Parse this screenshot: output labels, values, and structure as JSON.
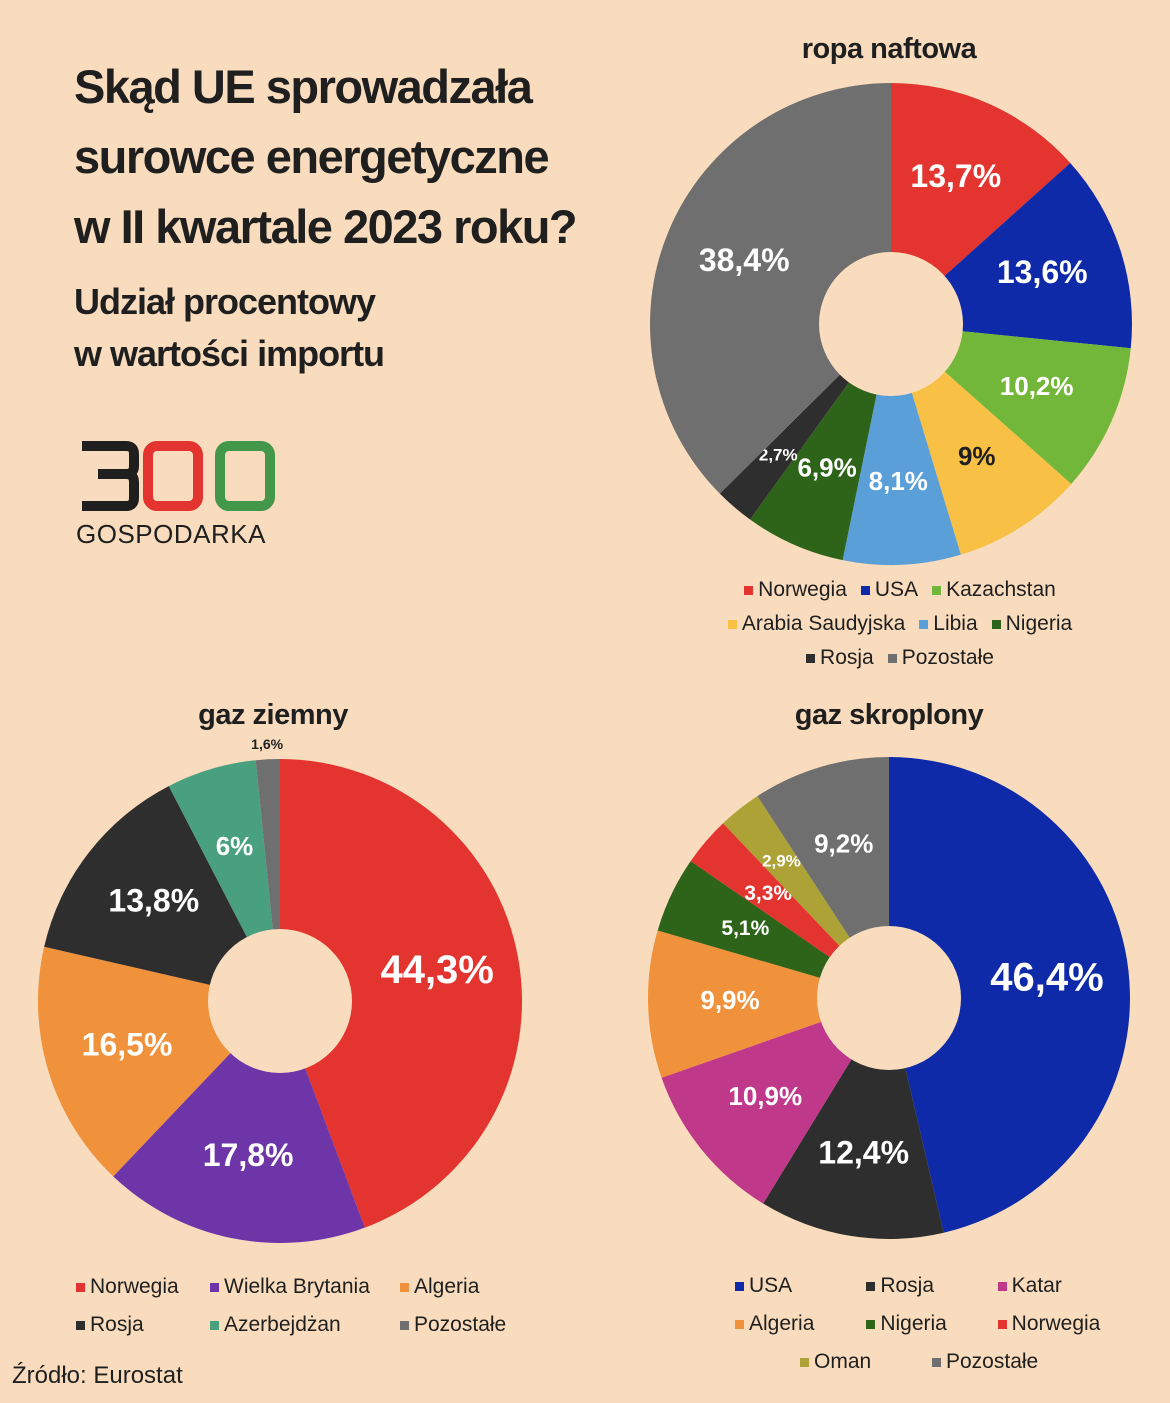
{
  "title_lines": [
    "Skąd UE sprowadzała",
    "surowce energetyczne",
    "w II kwartale 2023 roku?"
  ],
  "subtitle_lines": [
    "Udział procentowy",
    "w wartości importu"
  ],
  "logo": {
    "number": "300",
    "word": "GOSPODARKA"
  },
  "source": "Źródło: Eurostat",
  "chart_data": [
    {
      "type": "pie",
      "title": "ropa naftowa",
      "donut": true,
      "slices": [
        {
          "name": "Norwegia",
          "value": 13.7,
          "label": "13,7%",
          "color": "#e3342f"
        },
        {
          "name": "USA",
          "value": 13.6,
          "label": "13,6%",
          "color": "#0e2aa8"
        },
        {
          "name": "Kazachstan",
          "value": 10.2,
          "label": "10,2%",
          "color": "#72b73a"
        },
        {
          "name": "Arabia Saudyjska",
          "value": 9,
          "label": "9%",
          "color": "#f8c045",
          "dark": true
        },
        {
          "name": "Libia",
          "value": 8.1,
          "label": "8,1%",
          "color": "#5b9fd8"
        },
        {
          "name": "Nigeria",
          "value": 6.9,
          "label": "6,9%",
          "color": "#2d6419"
        },
        {
          "name": "Rosja",
          "value": 2.7,
          "label": "2,7%",
          "color": "#2e2e2e"
        },
        {
          "name": "Pozostałe",
          "value": 38.4,
          "label": "38,4%",
          "color": "#6f6f6f"
        }
      ]
    },
    {
      "type": "pie",
      "title": "gaz ziemny",
      "donut": true,
      "slices": [
        {
          "name": "Norwegia",
          "value": 44.3,
          "label": "44,3%",
          "color": "#e3342f"
        },
        {
          "name": "Wielka Brytania",
          "value": 17.8,
          "label": "17,8%",
          "color": "#6e35a8"
        },
        {
          "name": "Algeria",
          "value": 16.5,
          "label": "16,5%",
          "color": "#f0913c"
        },
        {
          "name": "Rosja",
          "value": 13.8,
          "label": "13,8%",
          "color": "#2e2e2e"
        },
        {
          "name": "Azerbejdżan",
          "value": 6,
          "label": "6%",
          "color": "#48a07e"
        },
        {
          "name": "Pozostałe",
          "value": 1.6,
          "label": "1,6%",
          "color": "#6f6f6f"
        }
      ]
    },
    {
      "type": "pie",
      "title": "gaz skroplony",
      "donut": true,
      "slices": [
        {
          "name": "USA",
          "value": 46.4,
          "label": "46,4%",
          "color": "#0e2aa8"
        },
        {
          "name": "Rosja",
          "value": 12.4,
          "label": "12,4%",
          "color": "#2e2e2e"
        },
        {
          "name": "Katar",
          "value": 10.9,
          "label": "10,9%",
          "color": "#c0388a"
        },
        {
          "name": "Algeria",
          "value": 9.9,
          "label": "9,9%",
          "color": "#f0913c"
        },
        {
          "name": "Nigeria",
          "value": 5.1,
          "label": "5,1%",
          "color": "#2d6419"
        },
        {
          "name": "Norwegia",
          "value": 3.3,
          "label": "3,3%",
          "color": "#e3342f"
        },
        {
          "name": "Oman",
          "value": 2.9,
          "label": "2,9%",
          "color": "#ada236"
        },
        {
          "name": "Pozostałe",
          "value": 9.2,
          "label": "9,2%",
          "color": "#6f6f6f"
        }
      ]
    }
  ]
}
